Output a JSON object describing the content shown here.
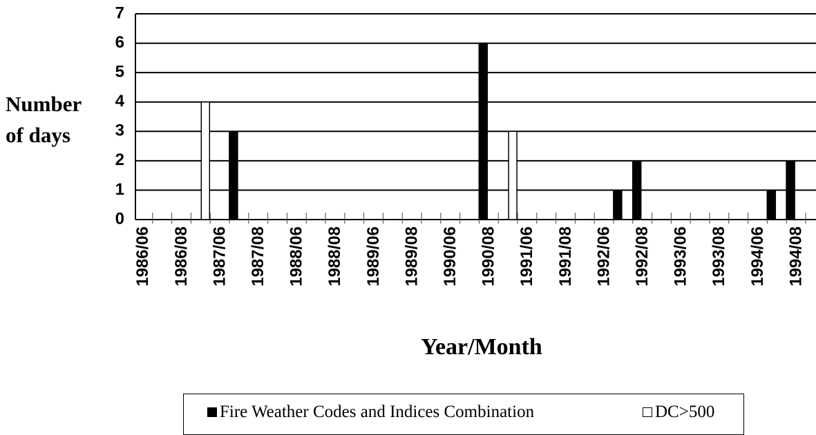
{
  "chart_data": {
    "type": "bar",
    "y_label": "Number of days",
    "x_label": "Year/Month",
    "categories": [
      "1986/06",
      null,
      "1986/08",
      null,
      "1987/06",
      null,
      "1987/08",
      null,
      "1988/06",
      null,
      "1988/08",
      null,
      "1989/06",
      null,
      "1989/08",
      null,
      "1990/06",
      null,
      "1990/08",
      null,
      "1991/06",
      null,
      "1991/08",
      null,
      "1992/06",
      null,
      "1992/08",
      null,
      "1993/06",
      null,
      "1993/08",
      null,
      "1994/06",
      null,
      "1994/08"
    ],
    "series": [
      {
        "name": "Fire Weather Codes and Indices Combination",
        "color": "#000000",
        "values": [
          0,
          0,
          0,
          0,
          0,
          3,
          0,
          0,
          0,
          0,
          0,
          0,
          0,
          0,
          0,
          0,
          0,
          0,
          6,
          0,
          0,
          0,
          0,
          0,
          0,
          1,
          2,
          0,
          0,
          0,
          0,
          0,
          0,
          1,
          2
        ]
      },
      {
        "name": "DC>500",
        "color": "#ffffff",
        "values": [
          0,
          0,
          0,
          4,
          0,
          0,
          0,
          0,
          0,
          0,
          0,
          0,
          0,
          0,
          0,
          0,
          0,
          0,
          0,
          3,
          0,
          0,
          0,
          0,
          0,
          0,
          0,
          0,
          0,
          0,
          0,
          0,
          0,
          0,
          0
        ]
      }
    ],
    "ylim": [
      0,
      7
    ],
    "yticks": [
      0,
      1,
      2,
      3,
      4,
      5,
      6,
      7
    ],
    "grid": true
  }
}
